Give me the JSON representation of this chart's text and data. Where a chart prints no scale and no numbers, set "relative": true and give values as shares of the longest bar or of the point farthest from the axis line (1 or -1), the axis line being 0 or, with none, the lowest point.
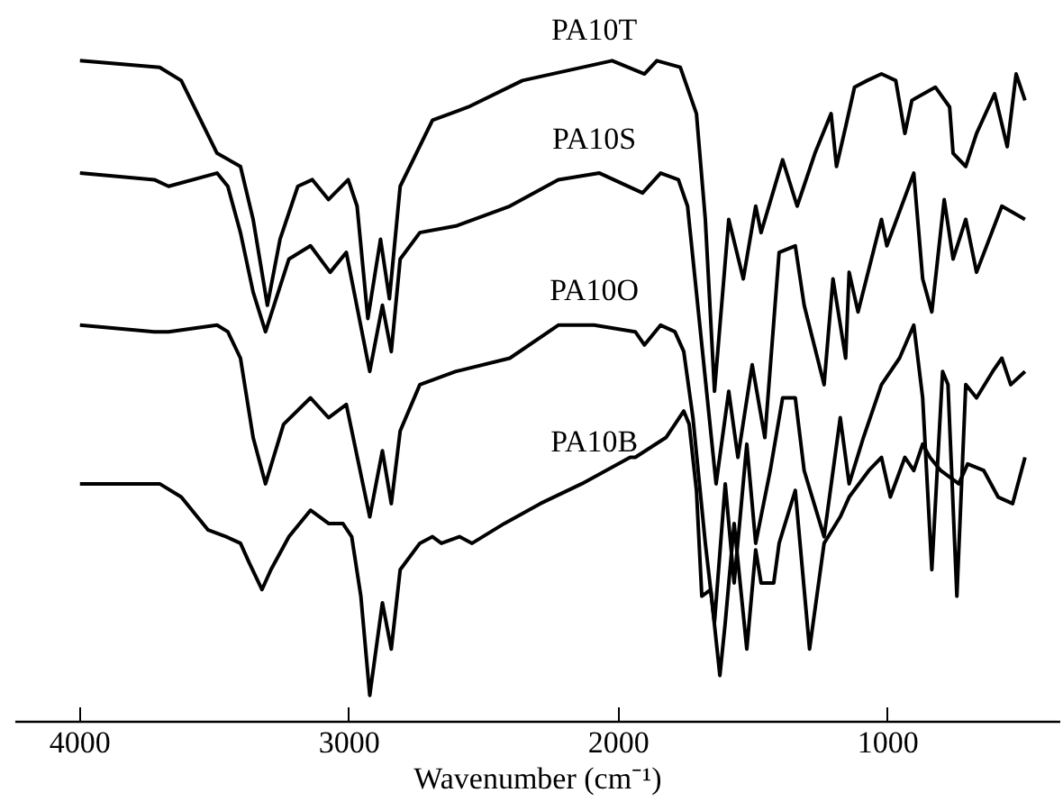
{
  "chart_data": {
    "type": "line",
    "relative": true,
    "xlabel": "Wavenumber (cm⁻¹)",
    "xlim": [
      4240,
      360
    ],
    "xticks": [
      4000,
      3000,
      2000,
      1000
    ],
    "grid": false,
    "marker": "none",
    "line_style": "solid",
    "tick_labels": "x",
    "series": [
      {
        "name": "PA10T",
        "color": "#000000",
        "x": [
          4000,
          3704,
          3624,
          3491,
          3404,
          3357,
          3304,
          3257,
          3191,
          3137,
          3077,
          3004,
          2971,
          2931,
          2884,
          2851,
          2811,
          2691,
          2558,
          2357,
          2024,
          1904,
          1858,
          1771,
          1711,
          1678,
          1644,
          1591,
          1537,
          1491,
          1471,
          1391,
          1337,
          1271,
          1211,
          1191,
          1157,
          1124,
          1077,
          1024,
          971,
          937,
          911,
          824,
          771,
          758,
          711,
          671,
          604,
          557,
          524,
          491
        ],
        "values": [
          1.0,
          0.99,
          0.97,
          0.86,
          0.84,
          0.76,
          0.63,
          0.73,
          0.81,
          0.82,
          0.79,
          0.82,
          0.78,
          0.61,
          0.73,
          0.64,
          0.81,
          0.91,
          0.93,
          0.97,
          1.0,
          0.98,
          1.0,
          0.99,
          0.92,
          0.76,
          0.5,
          0.76,
          0.67,
          0.78,
          0.74,
          0.85,
          0.78,
          0.86,
          0.92,
          0.84,
          0.9,
          0.96,
          0.97,
          0.98,
          0.97,
          0.89,
          0.94,
          0.96,
          0.93,
          0.86,
          0.84,
          0.89,
          0.95,
          0.87,
          0.98,
          0.94
        ]
      },
      {
        "name": "PA10S",
        "color": "#000000",
        "x": [
          4000,
          3724,
          3671,
          3491,
          3451,
          3404,
          3357,
          3311,
          3224,
          3144,
          3071,
          3011,
          2924,
          2877,
          2844,
          2811,
          2738,
          2604,
          2404,
          2224,
          2071,
          1911,
          1844,
          1778,
          1744,
          1691,
          1638,
          1591,
          1557,
          1504,
          1457,
          1404,
          1344,
          1311,
          1237,
          1204,
          1157,
          1144,
          1111,
          1024,
          1004,
          904,
          871,
          837,
          791,
          758,
          711,
          671,
          577,
          491
        ],
        "values": [
          0.83,
          0.82,
          0.81,
          0.83,
          0.81,
          0.74,
          0.65,
          0.59,
          0.7,
          0.72,
          0.68,
          0.71,
          0.53,
          0.63,
          0.56,
          0.7,
          0.74,
          0.75,
          0.78,
          0.82,
          0.83,
          0.8,
          0.83,
          0.82,
          0.78,
          0.57,
          0.36,
          0.5,
          0.4,
          0.54,
          0.43,
          0.71,
          0.72,
          0.63,
          0.51,
          0.67,
          0.55,
          0.68,
          0.62,
          0.76,
          0.72,
          0.83,
          0.67,
          0.62,
          0.79,
          0.7,
          0.76,
          0.68,
          0.78,
          0.76
        ]
      },
      {
        "name": "PA10O",
        "color": "#000000",
        "x": [
          4000,
          3724,
          3671,
          3491,
          3451,
          3404,
          3357,
          3311,
          3244,
          3144,
          3077,
          3011,
          2924,
          2877,
          2844,
          2811,
          2738,
          2604,
          2404,
          2224,
          2091,
          1938,
          1904,
          1844,
          1791,
          1758,
          1724,
          1678,
          1644,
          1604,
          1571,
          1524,
          1491,
          1437,
          1391,
          1344,
          1311,
          1237,
          1177,
          1144,
          1091,
          1024,
          957,
          904,
          871,
          837,
          797,
          777,
          744,
          711,
          671,
          611,
          577,
          544,
          491
        ],
        "values": [
          0.6,
          0.59,
          0.59,
          0.6,
          0.59,
          0.55,
          0.43,
          0.36,
          0.45,
          0.49,
          0.46,
          0.48,
          0.31,
          0.41,
          0.33,
          0.44,
          0.51,
          0.53,
          0.55,
          0.6,
          0.6,
          0.59,
          0.57,
          0.6,
          0.59,
          0.56,
          0.46,
          0.27,
          0.15,
          0.36,
          0.21,
          0.42,
          0.27,
          0.38,
          0.49,
          0.49,
          0.38,
          0.28,
          0.46,
          0.36,
          0.43,
          0.51,
          0.55,
          0.6,
          0.49,
          0.23,
          0.53,
          0.51,
          0.19,
          0.51,
          0.49,
          0.53,
          0.55,
          0.51,
          0.53
        ]
      },
      {
        "name": "PA10B",
        "color": "#000000",
        "x": [
          4000,
          3704,
          3624,
          3524,
          3457,
          3404,
          3371,
          3324,
          3291,
          3224,
          3144,
          3077,
          3024,
          2991,
          2957,
          2924,
          2877,
          2844,
          2811,
          2738,
          2691,
          2658,
          2591,
          2544,
          2424,
          2291,
          2137,
          1957,
          1938,
          1824,
          1758,
          1738,
          1711,
          1691,
          1658,
          1624,
          1604,
          1571,
          1524,
          1491,
          1471,
          1424,
          1404,
          1344,
          1291,
          1237,
          1177,
          1144,
          1071,
          1024,
          991,
          937,
          904,
          871,
          844,
          804,
          737,
          704,
          644,
          591,
          537,
          491
        ],
        "values": [
          0.36,
          0.36,
          0.34,
          0.29,
          0.28,
          0.27,
          0.24,
          0.2,
          0.23,
          0.28,
          0.32,
          0.3,
          0.3,
          0.28,
          0.19,
          0.04,
          0.18,
          0.11,
          0.23,
          0.27,
          0.28,
          0.27,
          0.28,
          0.27,
          0.3,
          0.33,
          0.36,
          0.4,
          0.4,
          0.43,
          0.47,
          0.45,
          0.35,
          0.19,
          0.2,
          0.07,
          0.15,
          0.3,
          0.11,
          0.26,
          0.21,
          0.21,
          0.27,
          0.35,
          0.11,
          0.27,
          0.31,
          0.34,
          0.38,
          0.4,
          0.34,
          0.4,
          0.38,
          0.42,
          0.4,
          0.38,
          0.36,
          0.39,
          0.38,
          0.34,
          0.33,
          0.4
        ]
      }
    ]
  }
}
